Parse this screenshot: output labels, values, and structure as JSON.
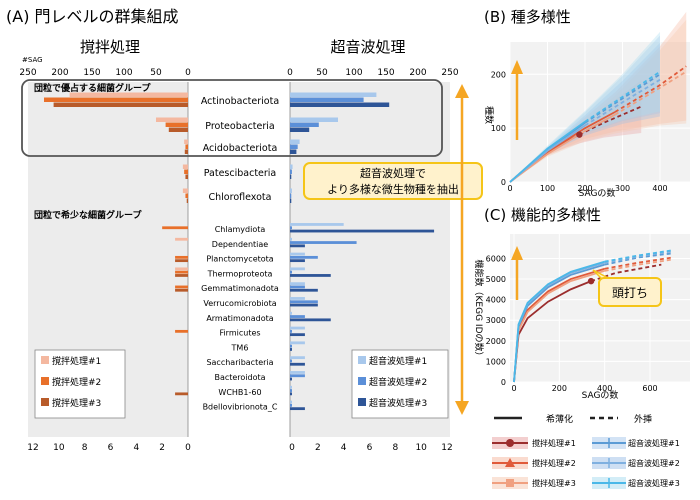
{
  "colors": {
    "stir1": "#f4b8a0",
    "stir2": "#e8702a",
    "stir3": "#b85b2a",
    "sonic1": "#a8c8ec",
    "sonic2": "#5b8fd8",
    "sonic3": "#2e5597",
    "stir_dark_line": "#9b2d2d",
    "stir_mid_line": "#e05a3a",
    "stir_light_line": "#f0a080",
    "sonic_line1": "#5b9bd5",
    "sonic_line2": "#7fb0e0",
    "sonic_line3": "#4ab8e8",
    "arrow": "#f5a623",
    "callout_fill": "#fff2cc",
    "callout_border": "#f5c518",
    "panel_bg": "#ececec"
  },
  "panel_a": {
    "title": "(A) 門レベルの群集組成",
    "sag_label": "#SAG",
    "stir_title": "撹拌処理",
    "sonic_title": "超音波処理",
    "dominant_label": "団粒で優占する細菌グループ",
    "rare_label": "団粒で希少な細菌グループ",
    "callout": [
      "超音波処理で",
      "より多様な微生物種を抽出"
    ],
    "top_ticks": [
      "250",
      "200",
      "150",
      "100",
      "50",
      "0"
    ],
    "top_ticks_sonic": [
      "0",
      "50",
      "100",
      "150",
      "200",
      "250"
    ],
    "bottom_ticks_stir": [
      "12",
      "10",
      "8",
      "6",
      "4",
      "2",
      "0"
    ],
    "bottom_ticks_sonic": [
      "0",
      "2",
      "4",
      "6",
      "8",
      "10",
      "12"
    ],
    "legend_stir": [
      "撹拌処理#1",
      "撹拌処理#2",
      "撹拌処理#3"
    ],
    "legend_sonic": [
      "超音波処理#1",
      "超音波処理#2",
      "超音波処理#3"
    ]
  },
  "panel_b": {
    "title": "(B) 種多様性",
    "xlabel": "SAGの数",
    "ylabel": "種数",
    "xticks": [
      "0",
      "100",
      "200",
      "300",
      "400"
    ],
    "yticks": [
      "0",
      "100",
      "200"
    ]
  },
  "panel_c": {
    "title": "(C) 機能的多様性",
    "xlabel": "SAGの数",
    "ylabel": "機能数（KEGG IDの数）",
    "xticks": [
      "0",
      "200",
      "400",
      "600"
    ],
    "yticks": [
      "0",
      "1000",
      "2000",
      "3000",
      "4000",
      "5000",
      "6000"
    ],
    "callout": "頭打ち"
  },
  "legend_bottom": {
    "rarefaction": "希薄化",
    "extrapolation": "外挿",
    "stir": [
      "撹拌処理#1",
      "撹拌処理#2",
      "撹拌処理#3"
    ],
    "sonic": [
      "超音波処理#1",
      "超音波処理#2",
      "超音波処理#3"
    ]
  },
  "chart_data": [
    {
      "type": "bar",
      "title": "(A) 門レベルの群集組成",
      "subtitle": "撹拌処理 / 超音波処理",
      "xlabel": "#SAG",
      "categories": [
        "Actinobacteriota",
        "Proteobacteria",
        "Acidobacteriota",
        "Patescibacteria",
        "Chloroflexota"
      ],
      "xlim": [
        0,
        250
      ],
      "series": [
        {
          "name": "撹拌処理#1",
          "values": [
            185,
            50,
            6,
            8,
            8
          ]
        },
        {
          "name": "撹拌処理#2",
          "values": [
            225,
            35,
            4,
            6,
            4
          ]
        },
        {
          "name": "撹拌処理#3",
          "values": [
            210,
            30,
            5,
            4,
            2
          ]
        },
        {
          "name": "超音波処理#1",
          "values": [
            135,
            75,
            15,
            4,
            3
          ]
        },
        {
          "name": "超音波処理#2",
          "values": [
            115,
            45,
            12,
            3,
            2
          ]
        },
        {
          "name": "超音波処理#3",
          "values": [
            155,
            30,
            10,
            2,
            2
          ]
        }
      ]
    },
    {
      "type": "bar",
      "categories": [
        "Chlamydiota",
        "Dependentiae",
        "Planctomycetota",
        "Thermoproteota",
        "Gemmatimonadota",
        "Verrucomicrobiota",
        "Armatimonadota",
        "Firmicutes",
        "TM6",
        "Saccharibacteria",
        "Bacteroidota",
        "WCHB1-60",
        "Bdellovibrionota_C"
      ],
      "xlim": [
        0,
        12
      ],
      "series": [
        {
          "name": "撹拌処理#1",
          "values": [
            0,
            1,
            0,
            1,
            0,
            0,
            0,
            0,
            0,
            0,
            0,
            0,
            0
          ]
        },
        {
          "name": "撹拌処理#2",
          "values": [
            2,
            0,
            1,
            1,
            1,
            0,
            0,
            1,
            0,
            0,
            0,
            0,
            0
          ]
        },
        {
          "name": "撹拌処理#3",
          "values": [
            0,
            0,
            1,
            1,
            1,
            0,
            0,
            0,
            0,
            0,
            0,
            1,
            0
          ]
        },
        {
          "name": "超音波処理#1",
          "values": [
            4,
            0,
            1,
            1,
            1,
            1,
            0,
            1,
            1,
            1,
            1,
            0,
            0
          ]
        },
        {
          "name": "超音波処理#2",
          "values": [
            0,
            5,
            2,
            0,
            1,
            2,
            1,
            0,
            0,
            0,
            1,
            0,
            0
          ]
        },
        {
          "name": "超音波処理#3",
          "values": [
            11,
            1,
            1,
            3,
            2,
            2,
            3,
            1,
            0,
            1,
            0,
            0,
            1
          ]
        }
      ]
    },
    {
      "type": "line",
      "title": "(B) 種多様性",
      "xlabel": "SAGの数",
      "ylabel": "種数",
      "xlim": [
        0,
        480
      ],
      "ylim": [
        0,
        260
      ],
      "series": [
        {
          "name": "撹拌処理#1",
          "x": [
            0,
            50,
            100,
            150,
            185,
            250,
            350
          ],
          "y": [
            0,
            30,
            55,
            75,
            88,
            110,
            140
          ]
        },
        {
          "name": "撹拌処理#2",
          "x": [
            0,
            100,
            200,
            280,
            400,
            470
          ],
          "y": [
            0,
            55,
            100,
            130,
            180,
            215
          ]
        },
        {
          "name": "撹拌処理#3",
          "x": [
            0,
            100,
            200,
            280,
            400,
            470
          ],
          "y": [
            0,
            52,
            95,
            125,
            175,
            205
          ]
        },
        {
          "name": "超音波処理#1",
          "x": [
            0,
            100,
            200,
            300,
            400
          ],
          "y": [
            0,
            60,
            110,
            155,
            200
          ]
        },
        {
          "name": "超音波処理#2",
          "x": [
            0,
            100,
            200,
            300,
            400
          ],
          "y": [
            0,
            58,
            105,
            148,
            190
          ]
        },
        {
          "name": "超音波処理#3",
          "x": [
            0,
            100,
            200,
            300,
            400
          ],
          "y": [
            0,
            62,
            112,
            158,
            205
          ]
        }
      ]
    },
    {
      "type": "line",
      "title": "(C) 機能的多様性",
      "xlabel": "SAGの数",
      "ylabel": "機能数（KEGG IDの数）",
      "xlim": [
        0,
        750
      ],
      "ylim": [
        0,
        6800
      ],
      "series": [
        {
          "name": "撹拌処理#1",
          "x": [
            0,
            20,
            60,
            150,
            250,
            340,
            450,
            650
          ],
          "y": [
            0,
            2300,
            3100,
            3900,
            4500,
            4900,
            5300,
            5700
          ]
        },
        {
          "name": "撹拌処理#2",
          "x": [
            0,
            20,
            60,
            150,
            250,
            400,
            550,
            700
          ],
          "y": [
            0,
            2600,
            3500,
            4400,
            5000,
            5500,
            5800,
            6050
          ]
        },
        {
          "name": "撹拌処理#3",
          "x": [
            0,
            20,
            60,
            150,
            250,
            400,
            550,
            700
          ],
          "y": [
            0,
            2500,
            3400,
            4300,
            4900,
            5400,
            5700,
            5950
          ]
        },
        {
          "name": "超音波処理#1",
          "x": [
            0,
            20,
            60,
            150,
            250,
            400,
            550,
            700
          ],
          "y": [
            0,
            2700,
            3700,
            4600,
            5200,
            5700,
            6050,
            6250
          ]
        },
        {
          "name": "超音波処理#2",
          "x": [
            0,
            20,
            60,
            150,
            250,
            400,
            550,
            700
          ],
          "y": [
            0,
            2750,
            3800,
            4700,
            5300,
            5800,
            6100,
            6350
          ]
        },
        {
          "name": "超音波処理#3",
          "x": [
            0,
            20,
            60,
            150,
            250,
            400,
            550,
            700
          ],
          "y": [
            0,
            2800,
            3850,
            4750,
            5350,
            5850,
            6150,
            6400
          ]
        }
      ]
    }
  ]
}
